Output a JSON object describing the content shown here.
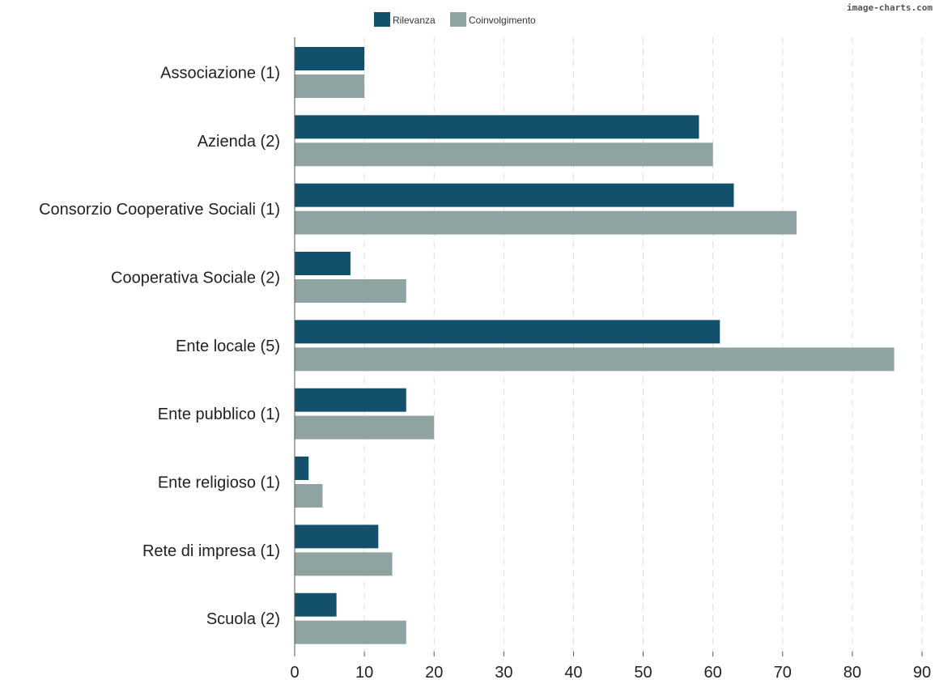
{
  "watermark": "image-charts.com",
  "chart_data": {
    "type": "bar",
    "orientation": "horizontal",
    "categories": [
      "Associazione  (1)",
      "Azienda (2)",
      "Consorzio Cooperative Sociali (1)",
      "Cooperativa Sociale (2)",
      "Ente locale (5)",
      "Ente pubblico (1)",
      "Ente religioso (1)",
      "Rete di impresa (1)",
      "Scuola (2)"
    ],
    "series": [
      {
        "name": "Rilevanza",
        "color": "#12506b",
        "values": [
          10,
          58,
          63,
          8,
          61,
          16,
          2,
          12,
          6
        ]
      },
      {
        "name": "Coinvolgimento",
        "color": "#8fa3a3",
        "values": [
          10,
          60,
          72,
          16,
          86,
          20,
          4,
          14,
          16
        ]
      }
    ],
    "xlim": [
      0,
      90
    ],
    "xticks": [
      "0",
      "10",
      "20",
      "30",
      "40",
      "50",
      "60",
      "70",
      "80",
      "90"
    ],
    "grid": "vertical-dashed",
    "legend_position": "top-center"
  }
}
